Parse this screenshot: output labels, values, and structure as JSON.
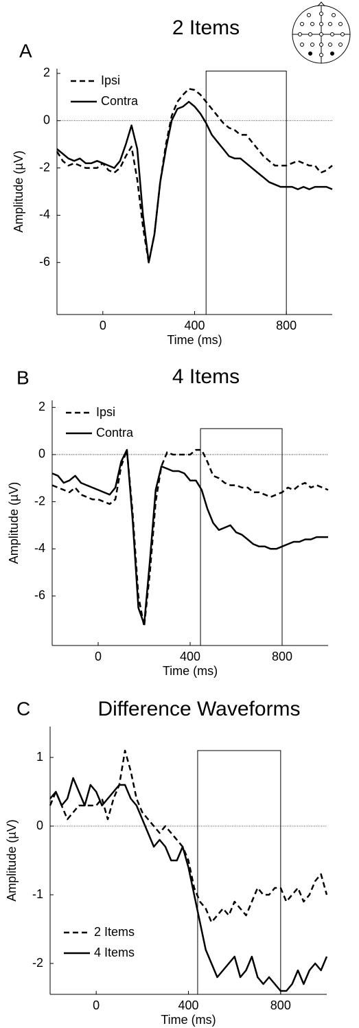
{
  "chart_data": [
    {
      "type": "line",
      "panel_label": "A",
      "title": "2 Items",
      "xlabel": "Time (ms)",
      "ylabel": "Amplitude (µV)",
      "x": [
        -200,
        -175,
        -150,
        -125,
        -100,
        -75,
        -50,
        -25,
        0,
        25,
        50,
        75,
        100,
        125,
        150,
        175,
        200,
        225,
        250,
        275,
        300,
        325,
        350,
        375,
        400,
        425,
        450,
        475,
        500,
        525,
        550,
        575,
        600,
        625,
        650,
        675,
        700,
        725,
        750,
        775,
        800,
        825,
        850,
        875,
        900,
        925,
        950,
        975,
        1000
      ],
      "xlim": [
        -200,
        1000
      ],
      "xticks": [
        0,
        400,
        800
      ],
      "ylim": [
        -8.2,
        2.2
      ],
      "yticks": [
        2,
        0,
        -2,
        -4,
        -6
      ],
      "hline": 0,
      "window": {
        "x": [
          450,
          800
        ],
        "top": 2.1
      },
      "legend": "upper left",
      "series": [
        {
          "name": "Ipsi",
          "color": "#000000",
          "style": "dashed",
          "values": [
            -1.3,
            -1.7,
            -1.9,
            -1.8,
            -1.9,
            -2.0,
            -2.0,
            -2.0,
            -1.8,
            -2.1,
            -2.2,
            -2.0,
            -1.5,
            -1.1,
            -2.5,
            -4.5,
            -6.0,
            -4.8,
            -2.6,
            -1.0,
            0.2,
            0.8,
            1.1,
            1.35,
            1.3,
            1.1,
            0.8,
            0.5,
            0.2,
            -0.1,
            -0.3,
            -0.4,
            -0.6,
            -0.6,
            -0.9,
            -1.2,
            -1.5,
            -1.7,
            -1.9,
            -1.9,
            -1.9,
            -1.8,
            -1.7,
            -1.8,
            -1.9,
            -1.9,
            -2.2,
            -2.1,
            -1.9
          ]
        },
        {
          "name": "Contra",
          "color": "#000000",
          "style": "solid",
          "values": [
            -1.2,
            -1.4,
            -1.6,
            -1.7,
            -1.6,
            -1.8,
            -1.8,
            -1.7,
            -1.8,
            -1.9,
            -2.0,
            -1.7,
            -1.0,
            -0.2,
            -1.2,
            -4.0,
            -6.0,
            -4.8,
            -2.6,
            -1.2,
            0.0,
            0.5,
            0.6,
            0.8,
            0.6,
            0.3,
            -0.1,
            -0.6,
            -0.9,
            -1.2,
            -1.5,
            -1.6,
            -1.6,
            -1.8,
            -2.0,
            -2.2,
            -2.4,
            -2.6,
            -2.7,
            -2.8,
            -2.8,
            -2.8,
            -2.9,
            -2.8,
            -2.9,
            -2.8,
            -2.8,
            -2.8,
            -2.9
          ]
        }
      ]
    },
    {
      "type": "line",
      "panel_label": "B",
      "title": "4 Items",
      "xlabel": "Time (ms)",
      "ylabel": "Amplitude (µV)",
      "x": [
        -200,
        -175,
        -150,
        -125,
        -100,
        -75,
        -50,
        -25,
        0,
        25,
        50,
        75,
        100,
        125,
        150,
        175,
        200,
        225,
        250,
        275,
        300,
        325,
        350,
        375,
        400,
        425,
        450,
        475,
        500,
        525,
        550,
        575,
        600,
        625,
        650,
        675,
        700,
        725,
        750,
        775,
        800,
        825,
        850,
        875,
        900,
        925,
        950,
        975,
        1000
      ],
      "xlim": [
        -200,
        1000
      ],
      "xticks": [
        0,
        400,
        800
      ],
      "ylim": [
        -8.1,
        2.3
      ],
      "yticks": [
        2,
        0,
        -2,
        -4,
        -6
      ],
      "hline": 0,
      "window": {
        "x": [
          445,
          800
        ],
        "top": 1.1
      },
      "legend": "upper left",
      "series": [
        {
          "name": "Ipsi",
          "color": "#000000",
          "style": "dashed",
          "values": [
            -1.3,
            -1.4,
            -1.5,
            -1.6,
            -1.4,
            -1.7,
            -1.8,
            -1.9,
            -1.9,
            -2.0,
            -2.1,
            -1.9,
            -0.5,
            0.2,
            -2.5,
            -6.0,
            -7.3,
            -5.0,
            -2.0,
            -0.5,
            0.1,
            0.0,
            0.0,
            0.0,
            0.0,
            0.2,
            0.2,
            -0.3,
            -0.9,
            -1.0,
            -1.2,
            -1.3,
            -1.3,
            -1.4,
            -1.4,
            -1.6,
            -1.6,
            -1.7,
            -1.8,
            -1.7,
            -1.6,
            -1.4,
            -1.5,
            -1.3,
            -1.2,
            -1.4,
            -1.3,
            -1.4,
            -1.5
          ]
        },
        {
          "name": "Contra",
          "color": "#000000",
          "style": "solid",
          "values": [
            -0.8,
            -0.9,
            -1.2,
            -1.1,
            -0.9,
            -1.2,
            -1.3,
            -1.4,
            -1.5,
            -1.6,
            -1.7,
            -1.4,
            -0.3,
            0.2,
            -2.8,
            -6.5,
            -7.2,
            -4.5,
            -1.5,
            -0.5,
            -0.6,
            -0.7,
            -0.7,
            -0.8,
            -1.1,
            -1.1,
            -1.5,
            -2.3,
            -2.9,
            -3.2,
            -3.1,
            -3.0,
            -3.3,
            -3.4,
            -3.6,
            -3.8,
            -3.9,
            -3.9,
            -4.0,
            -4.0,
            -3.9,
            -3.8,
            -3.7,
            -3.7,
            -3.6,
            -3.6,
            -3.5,
            -3.5,
            -3.5
          ]
        }
      ]
    },
    {
      "type": "line",
      "panel_label": "C",
      "title": "Difference Waveforms",
      "xlabel": "Time (ms)",
      "ylabel": "Amplitude (µV)",
      "x": [
        -200,
        -175,
        -150,
        -125,
        -100,
        -75,
        -50,
        -25,
        0,
        25,
        50,
        75,
        100,
        125,
        150,
        175,
        200,
        225,
        250,
        275,
        300,
        325,
        350,
        375,
        400,
        425,
        450,
        475,
        500,
        525,
        550,
        575,
        600,
        625,
        650,
        675,
        700,
        725,
        750,
        775,
        800,
        825,
        850,
        875,
        900,
        925,
        950,
        975,
        1000
      ],
      "xlim": [
        -200,
        1000
      ],
      "xticks": [
        0,
        400,
        800
      ],
      "ylim": [
        -2.45,
        1.45
      ],
      "yticks": [
        1,
        0,
        -1,
        -2
      ],
      "hline": 0,
      "window": {
        "x": [
          440,
          800
        ],
        "top": 1.1
      },
      "legend": "lower left",
      "series": [
        {
          "name": "2 Items",
          "color": "#000000",
          "style": "dashed",
          "values": [
            0.3,
            0.5,
            0.3,
            0.1,
            0.2,
            0.3,
            0.3,
            0.3,
            0.3,
            0.4,
            0.1,
            0.4,
            0.6,
            1.1,
            0.8,
            0.4,
            0.2,
            0.1,
            0.0,
            -0.1,
            0.0,
            -0.1,
            -0.2,
            -0.3,
            -0.5,
            -0.9,
            -1.1,
            -1.2,
            -1.4,
            -1.3,
            -1.2,
            -1.3,
            -1.1,
            -1.2,
            -1.3,
            -1.1,
            -0.9,
            -1.0,
            -1.0,
            -0.9,
            -0.9,
            -1.1,
            -1.0,
            -0.9,
            -1.1,
            -1.0,
            -0.8,
            -0.7,
            -1.0
          ]
        },
        {
          "name": "4 Items",
          "color": "#000000",
          "style": "solid",
          "values": [
            0.4,
            0.5,
            0.3,
            0.4,
            0.7,
            0.5,
            0.3,
            0.6,
            0.5,
            0.3,
            0.4,
            0.5,
            0.6,
            0.6,
            0.4,
            0.3,
            0.1,
            -0.1,
            -0.3,
            -0.2,
            -0.3,
            -0.5,
            -0.5,
            -0.3,
            -0.6,
            -1.0,
            -1.4,
            -1.8,
            -2.0,
            -2.2,
            -2.1,
            -2.0,
            -1.9,
            -2.2,
            -2.1,
            -1.9,
            -2.2,
            -2.3,
            -2.2,
            -2.3,
            -2.4,
            -2.4,
            -2.3,
            -2.1,
            -2.3,
            -2.1,
            -2.0,
            -2.1,
            -1.9
          ]
        }
      ]
    }
  ]
}
